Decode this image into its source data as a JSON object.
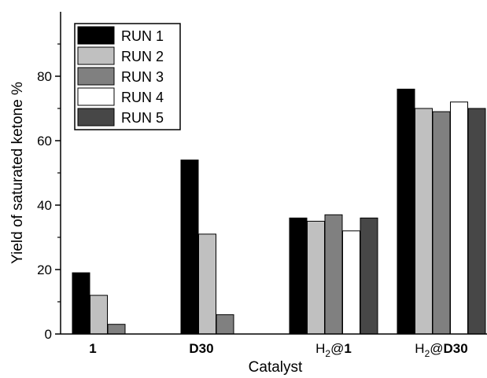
{
  "chart_data": {
    "type": "bar",
    "title": "",
    "xlabel": "Catalyst",
    "ylabel": "Yield of saturated ketone %",
    "ylim": [
      0,
      100
    ],
    "yticks": [
      0,
      20,
      40,
      60,
      80
    ],
    "grid": false,
    "legend_position": "top-left",
    "categories": [
      {
        "label": "1",
        "bold": true
      },
      {
        "label": "D30",
        "bold": true
      },
      {
        "label": "H2@1",
        "prefix": "H",
        "sub": "2",
        "suffix_plain": "@",
        "suffix_bold": "1"
      },
      {
        "label": "H2@D30",
        "prefix": "H",
        "sub": "2",
        "suffix_plain": "@",
        "suffix_bold": "D30"
      }
    ],
    "series": [
      {
        "name": "RUN 1",
        "color": "#000000",
        "values": [
          19,
          54,
          36,
          76
        ]
      },
      {
        "name": "RUN 2",
        "color": "#c0c0c0",
        "values": [
          12,
          31,
          35,
          70
        ]
      },
      {
        "name": "RUN 3",
        "color": "#808080",
        "values": [
          3,
          6,
          37,
          69
        ]
      },
      {
        "name": "RUN 4",
        "color": "#ffffff",
        "values": [
          null,
          null,
          32,
          72
        ]
      },
      {
        "name": "RUN 5",
        "color": "#474747",
        "values": [
          null,
          null,
          36,
          70
        ]
      }
    ]
  }
}
